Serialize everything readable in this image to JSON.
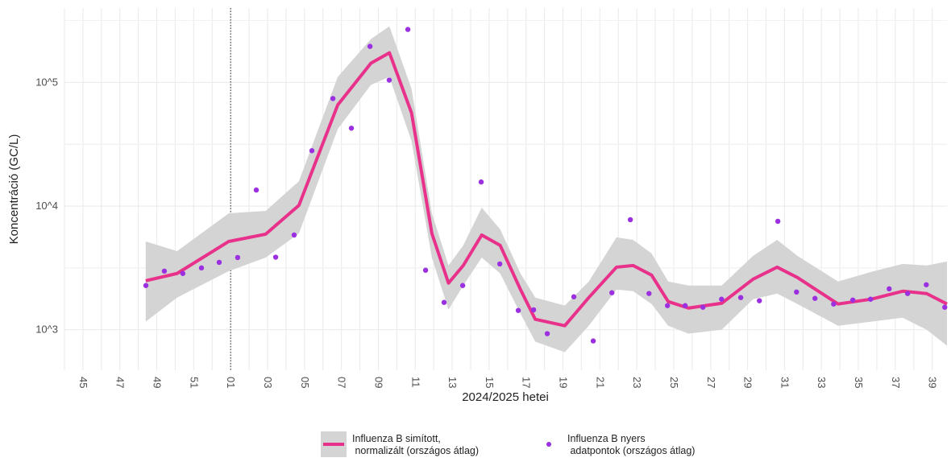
{
  "chart_data": {
    "type": "line+scatter",
    "x_label": "2024/2025 hetei",
    "y_label": "Koncentráció (GC/L)",
    "log_y": true,
    "grid": true,
    "legend": "bottom",
    "xlim": [
      44,
      91.8
    ],
    "xticks": [
      {
        "value": 45,
        "label": "45"
      },
      {
        "value": 47,
        "label": "47"
      },
      {
        "value": 49,
        "label": "49"
      },
      {
        "value": 51,
        "label": "51"
      },
      {
        "value": 53,
        "label": "01"
      },
      {
        "value": 55,
        "label": "03"
      },
      {
        "value": 57,
        "label": "05"
      },
      {
        "value": 59,
        "label": "07"
      },
      {
        "value": 61,
        "label": "09"
      },
      {
        "value": 63,
        "label": "11"
      },
      {
        "value": 65,
        "label": "13"
      },
      {
        "value": 67,
        "label": "15"
      },
      {
        "value": 69,
        "label": "17"
      },
      {
        "value": 71,
        "label": "19"
      },
      {
        "value": 73,
        "label": "21"
      },
      {
        "value": 75,
        "label": "23"
      },
      {
        "value": 77,
        "label": "25"
      },
      {
        "value": 79,
        "label": "27"
      },
      {
        "value": 81,
        "label": "29"
      },
      {
        "value": 83,
        "label": "31"
      },
      {
        "value": 85,
        "label": "33"
      },
      {
        "value": 87,
        "label": "35"
      },
      {
        "value": 89,
        "label": "37"
      },
      {
        "value": 91,
        "label": "39"
      }
    ],
    "ylim": [
      470,
      400000
    ],
    "yticks": [
      {
        "value": 1000,
        "label": "10^3"
      },
      {
        "value": 10000,
        "label": "10^4"
      },
      {
        "value": 100000,
        "label": "10^5"
      }
    ],
    "reference_x": 53,
    "series": [
      {
        "name": "Influenza B simított,\n normalizált (országos átlag)",
        "type": "line",
        "color": "#e8318a",
        "band_color": "#d4d4d4",
        "x": [
          48.4,
          50.1,
          52.9,
          54.9,
          56.7,
          58.8,
          60.6,
          61.6,
          62.8,
          63.9,
          64.8,
          65.6,
          66.6,
          67.6,
          68.7,
          69.5,
          71.1,
          72.4,
          73.9,
          74.8,
          75.8,
          76.7,
          77.8,
          79.6,
          81.3,
          82.6,
          83.7,
          85.9,
          87.7,
          89.4,
          90.7,
          91.8
        ],
        "values": [
          2489,
          2851,
          5176,
          5929,
          10150,
          65770,
          143200,
          173800,
          56620,
          6012,
          2382,
          3306,
          5834,
          4808,
          2113,
          1214,
          1077,
          1820,
          3206,
          3306,
          2765,
          1688,
          1497,
          1637,
          2566,
          3206,
          2642,
          1614,
          1766,
          2049,
          1960,
          1614
        ],
        "upper": [
          5176,
          4325,
          8750,
          9141,
          15890,
          110900,
          224400,
          285100,
          88720,
          8750,
          3306,
          4808,
          9705,
          6486,
          2851,
          1820,
          1567,
          2455,
          5583,
          5334,
          4138,
          2455,
          2277,
          2277,
          3955,
          5334,
          3955,
          2455,
          2937,
          3406,
          3306,
          3565
        ],
        "lower": [
          1161,
          1820,
          2979,
          3837,
          6012,
          41980,
          95720,
          110900,
          33570,
          3837,
          1453,
          2277,
          3837,
          2851,
          1349,
          800,
          658,
          1077,
          2113,
          2049,
          1614,
          1077,
          929,
          1000,
          1766,
          1960,
          1614,
          1077,
          1161,
          1251,
          1000,
          742
        ]
      },
      {
        "name": "Influenza B nyers\n adatpontok (országos átlag)",
        "type": "scatter",
        "color": "#9b30e0",
        "x": [
          48.41,
          49.41,
          50.41,
          51.42,
          52.38,
          53.38,
          54.39,
          55.44,
          56.44,
          57.4,
          58.54,
          59.54,
          60.55,
          61.59,
          62.6,
          63.56,
          64.56,
          65.57,
          66.57,
          67.58,
          68.58,
          69.41,
          70.15,
          71.59,
          72.64,
          73.65,
          74.65,
          75.66,
          76.66,
          77.62,
          78.58,
          79.59,
          80.63,
          81.64,
          82.64,
          83.65,
          84.65,
          85.66,
          86.7,
          87.66,
          88.67,
          89.67,
          90.68,
          91.68
        ],
        "values": [
          2277,
          2979,
          2851,
          3162,
          3508,
          3837,
          13490,
          3860,
          5834,
          28060,
          74130,
          42660,
          195900,
          104500,
          268500,
          3027,
          1663,
          2277,
          15670,
          3404,
          1432,
          1448,
          929,
          1846,
          811,
          1991,
          7762,
          1963,
          1566,
          1566,
          1520,
          1765,
          1820,
          1715,
          7534,
          2018,
          1792,
          1612,
          1738,
          1765,
          2142,
          1963,
          2310,
          1520
        ]
      }
    ]
  }
}
